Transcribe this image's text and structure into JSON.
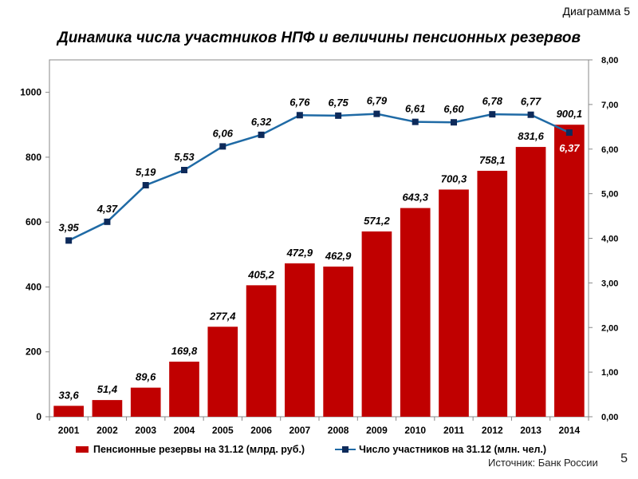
{
  "header": {
    "diagram_label": "Диаграмма 5"
  },
  "chart_data": {
    "type": "bar+line",
    "title": "Динамика числа участников НПФ и величины пенсионных резервов",
    "categories": [
      "2001",
      "2002",
      "2003",
      "2004",
      "2005",
      "2006",
      "2007",
      "2008",
      "2009",
      "2010",
      "2011",
      "2012",
      "2013",
      "2014"
    ],
    "series": [
      {
        "name": "Пенсионные резервы на 31.12 (млрд. руб.)",
        "type": "bar",
        "axis": "left",
        "color": "#c00000",
        "values": [
          33.6,
          51.4,
          89.6,
          169.8,
          277.4,
          405.2,
          472.9,
          462.9,
          571.2,
          643.3,
          700.3,
          758.1,
          831.6,
          900.1
        ],
        "labels": [
          "33,6",
          "51,4",
          "89,6",
          "169,8",
          "277,4",
          "405,2",
          "472,9",
          "462,9",
          "571,2",
          "643,3",
          "700,3",
          "758,1",
          "831,6",
          "900,1"
        ]
      },
      {
        "name": "Число участников на 31.12 (млн. чел.)",
        "type": "line",
        "axis": "right",
        "color": "#1f6aa5",
        "marker_color": "#0d2a5a",
        "values": [
          3.95,
          4.37,
          5.19,
          5.53,
          6.06,
          6.32,
          6.76,
          6.75,
          6.79,
          6.61,
          6.6,
          6.78,
          6.77,
          6.37
        ],
        "labels": [
          "3,95",
          "4,37",
          "5,19",
          "5,53",
          "6,06",
          "6,32",
          "6,76",
          "6,75",
          "6,79",
          "6,61",
          "6,60",
          "6,78",
          "6,77",
          "6,37"
        ]
      }
    ],
    "y_left": {
      "min": 0,
      "max": 1100,
      "ticks": [
        0,
        200,
        400,
        600,
        800,
        1000
      ],
      "tick_labels": [
        "0",
        "200",
        "400",
        "600",
        "800",
        "1000"
      ]
    },
    "y_right": {
      "min": 0,
      "max": 8,
      "ticks": [
        0,
        1,
        2,
        3,
        4,
        5,
        6,
        7,
        8
      ],
      "tick_labels": [
        "0,00",
        "1,00",
        "2,00",
        "3,00",
        "4,00",
        "5,00",
        "6,00",
        "7,00",
        "8,00"
      ]
    },
    "grid": false,
    "legend_position": "bottom"
  },
  "footer": {
    "source": "Источник: Банк России",
    "page_number": "5"
  }
}
